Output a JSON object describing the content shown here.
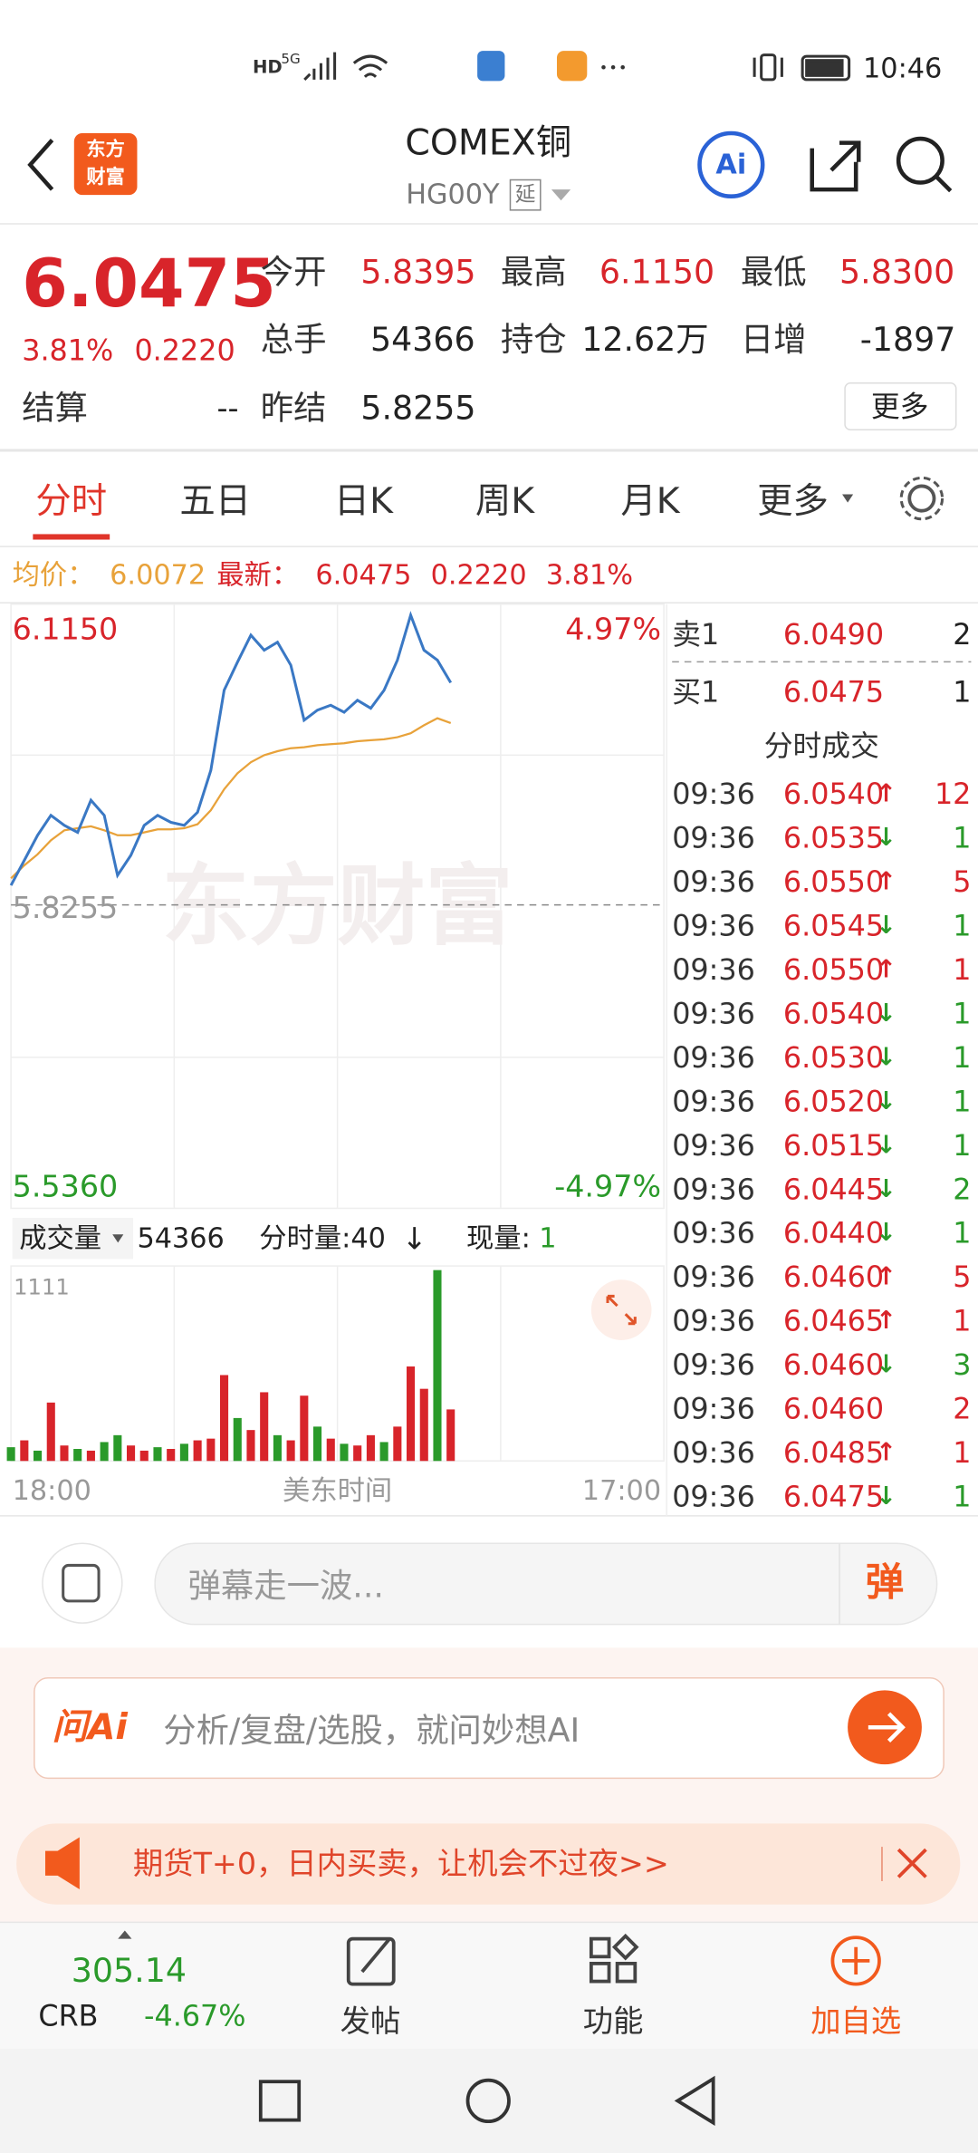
{
  "status_bar": {
    "hd": "HD",
    "network": "5G",
    "time": "10:46"
  },
  "header": {
    "logo": [
      "东方",
      "财富"
    ],
    "title": "COMEX铜",
    "code": "HG00Y",
    "tag": "延",
    "ai": "Ai"
  },
  "quote": {
    "price": "6.0475",
    "change_pct": "3.81%",
    "change": "0.2220",
    "fields": [
      {
        "label": "今开",
        "value": "5.8395"
      },
      {
        "label": "最高",
        "value": "6.1150"
      },
      {
        "label": "最低",
        "value": "5.8300"
      },
      {
        "label": "总手",
        "value": "54366"
      },
      {
        "label": "持仓",
        "value": "12.62万"
      },
      {
        "label": "日增",
        "value": "-1897"
      },
      {
        "label": "结算",
        "value": "--"
      },
      {
        "label": "昨结",
        "value": "5.8255"
      }
    ],
    "more": "更多"
  },
  "tabs": [
    "分时",
    "五日",
    "日K",
    "周K",
    "月K",
    "更多"
  ],
  "summary": {
    "avg": "6.0072",
    "latest": "6.0475",
    "change": "0.2220",
    "change_pct": "3.81%"
  },
  "watermark": "东方财富",
  "volume_header": {
    "label": "成交量",
    "total": "54366",
    "interval": "分时量:40",
    "arrow": "↓",
    "current_label": "现量:",
    "current": "1"
  },
  "order_book": [
    {
      "label": "卖1",
      "price": "6.0490",
      "volume": "2"
    },
    {
      "label": "买1",
      "price": "6.0475",
      "volume": "1"
    }
  ],
  "trades": {
    "title": "分时成交",
    "rows": [
      {
        "time": "09:36",
        "price": "6.0540",
        "arrow": "↑",
        "volume": "12"
      },
      {
        "time": "09:36",
        "price": "6.0535",
        "arrow": "↓",
        "volume": "1"
      },
      {
        "time": "09:36",
        "price": "6.0550",
        "arrow": "↑",
        "volume": "5"
      },
      {
        "time": "09:36",
        "price": "6.0545",
        "arrow": "↓",
        "volume": "1"
      },
      {
        "time": "09:36",
        "price": "6.0550",
        "arrow": "↑",
        "volume": "1"
      },
      {
        "time": "09:36",
        "price": "6.0540",
        "arrow": "↓",
        "volume": "1"
      },
      {
        "time": "09:36",
        "price": "6.0530",
        "arrow": "↓",
        "volume": "1"
      },
      {
        "time": "09:36",
        "price": "6.0520",
        "arrow": "↓",
        "volume": "1"
      },
      {
        "time": "09:36",
        "price": "6.0515",
        "arrow": "↓",
        "volume": "1"
      },
      {
        "time": "09:36",
        "price": "6.0445",
        "arrow": "↓",
        "volume": "2"
      },
      {
        "time": "09:36",
        "price": "6.0440",
        "arrow": "↓",
        "volume": "1"
      },
      {
        "time": "09:36",
        "price": "6.0460",
        "arrow": "↑",
        "volume": "5"
      },
      {
        "time": "09:36",
        "price": "6.0465",
        "arrow": "↑",
        "volume": "1"
      },
      {
        "time": "09:36",
        "price": "6.0460",
        "arrow": "↓",
        "volume": "3"
      },
      {
        "time": "09:36",
        "price": "6.0460",
        "volume": "2"
      },
      {
        "time": "09:36",
        "price": "6.0485",
        "arrow": "↑",
        "volume": "1"
      },
      {
        "time": "09:36",
        "price": "6.0475",
        "arrow": "↓",
        "volume": "1"
      }
    ]
  },
  "comment": {
    "placeholder": "弹幕走一波...",
    "button": "弹"
  },
  "ai_bar": {
    "brand": "问Ai",
    "placeholder": "分析/复盘/选股，就问妙想AI"
  },
  "banner": {
    "text": "期货T+0，日内买卖，让机会不过夜>>"
  },
  "bottom_nav": {
    "index_value": "305.14",
    "index_name": "CRB",
    "index_change": "-4.67%",
    "items": [
      "发帖",
      "功能",
      "加自选"
    ]
  },
  "chart_data": [
    {
      "type": "line",
      "ylim": [
        5.536,
        6.115
      ],
      "yticks": [
        {
          "value": 6.115,
          "label": "6.1150"
        },
        {
          "value": 5.8255,
          "label": "5.8255"
        },
        {
          "value": 5.536,
          "label": "5.5360"
        }
      ],
      "y2lim": [
        -4.97,
        4.97
      ],
      "y2ticks": [
        {
          "value": 4.97,
          "label": "4.97%"
        },
        {
          "value": -4.97,
          "label": "-4.97%"
        }
      ],
      "xtick_labels": [
        "18:00",
        "17:00"
      ],
      "xlabel": "美东时间",
      "series": [
        {
          "name": "最新：",
          "color": "#3a78c4",
          "values": [
            5.845,
            5.87,
            5.895,
            5.915,
            5.905,
            5.898,
            5.93,
            5.915,
            5.855,
            5.875,
            5.905,
            5.915,
            5.908,
            5.905,
            5.918,
            5.96,
            6.04,
            6.068,
            6.095,
            6.08,
            6.088,
            6.065,
            6.01,
            6.02,
            6.025,
            6.018,
            6.03,
            6.022,
            6.04,
            6.07,
            6.115,
            6.08,
            6.07,
            6.0475,
            null,
            null,
            null,
            null,
            null,
            null,
            null,
            null,
            null,
            null,
            null,
            null,
            null,
            null,
            null,
            null
          ]
        },
        {
          "name": "均价：",
          "color": "#e8a23a",
          "values": [
            5.852,
            5.865,
            5.876,
            5.89,
            5.9,
            5.902,
            5.904,
            5.9,
            5.895,
            5.895,
            5.898,
            5.901,
            5.901,
            5.902,
            5.906,
            5.92,
            5.941,
            5.957,
            5.968,
            5.975,
            5.979,
            5.982,
            5.983,
            5.985,
            5.986,
            5.987,
            5.989,
            5.99,
            5.991,
            5.993,
            5.997,
            6.005,
            6.012,
            6.0072,
            null,
            null,
            null,
            null,
            null,
            null,
            null,
            null,
            null,
            null,
            null,
            null,
            null,
            null,
            null,
            null
          ]
        }
      ]
    },
    {
      "type": "bar",
      "ylim": [
        0,
        1111
      ],
      "yticks": [
        1111
      ],
      "values": [
        80,
        120,
        60,
        340,
        90,
        70,
        60,
        110,
        150,
        90,
        60,
        80,
        70,
        100,
        120,
        130,
        500,
        250,
        180,
        400,
        150,
        120,
        380,
        200,
        130,
        100,
        90,
        150,
        110,
        200,
        550,
        420,
        1111,
        300
      ],
      "colors": [
        "#2a9a2a",
        "#d8242a",
        "#2a9a2a",
        "#d8242a",
        "#d8242a",
        "#2a9a2a",
        "#d8242a",
        "#2a9a2a",
        "#2a9a2a",
        "#d8242a",
        "#d8242a",
        "#2a9a2a",
        "#d8242a",
        "#2a9a2a",
        "#d8242a",
        "#d8242a",
        "#d8242a",
        "#2a9a2a",
        "#d8242a",
        "#d8242a",
        "#2a9a2a",
        "#d8242a",
        "#d8242a",
        "#2a9a2a",
        "#d8242a",
        "#2a9a2a",
        "#d8242a",
        "#d8242a",
        "#2a9a2a",
        "#d8242a",
        "#d8242a",
        "#d8242a",
        "#2a9a2a",
        "#d8242a"
      ]
    }
  ]
}
